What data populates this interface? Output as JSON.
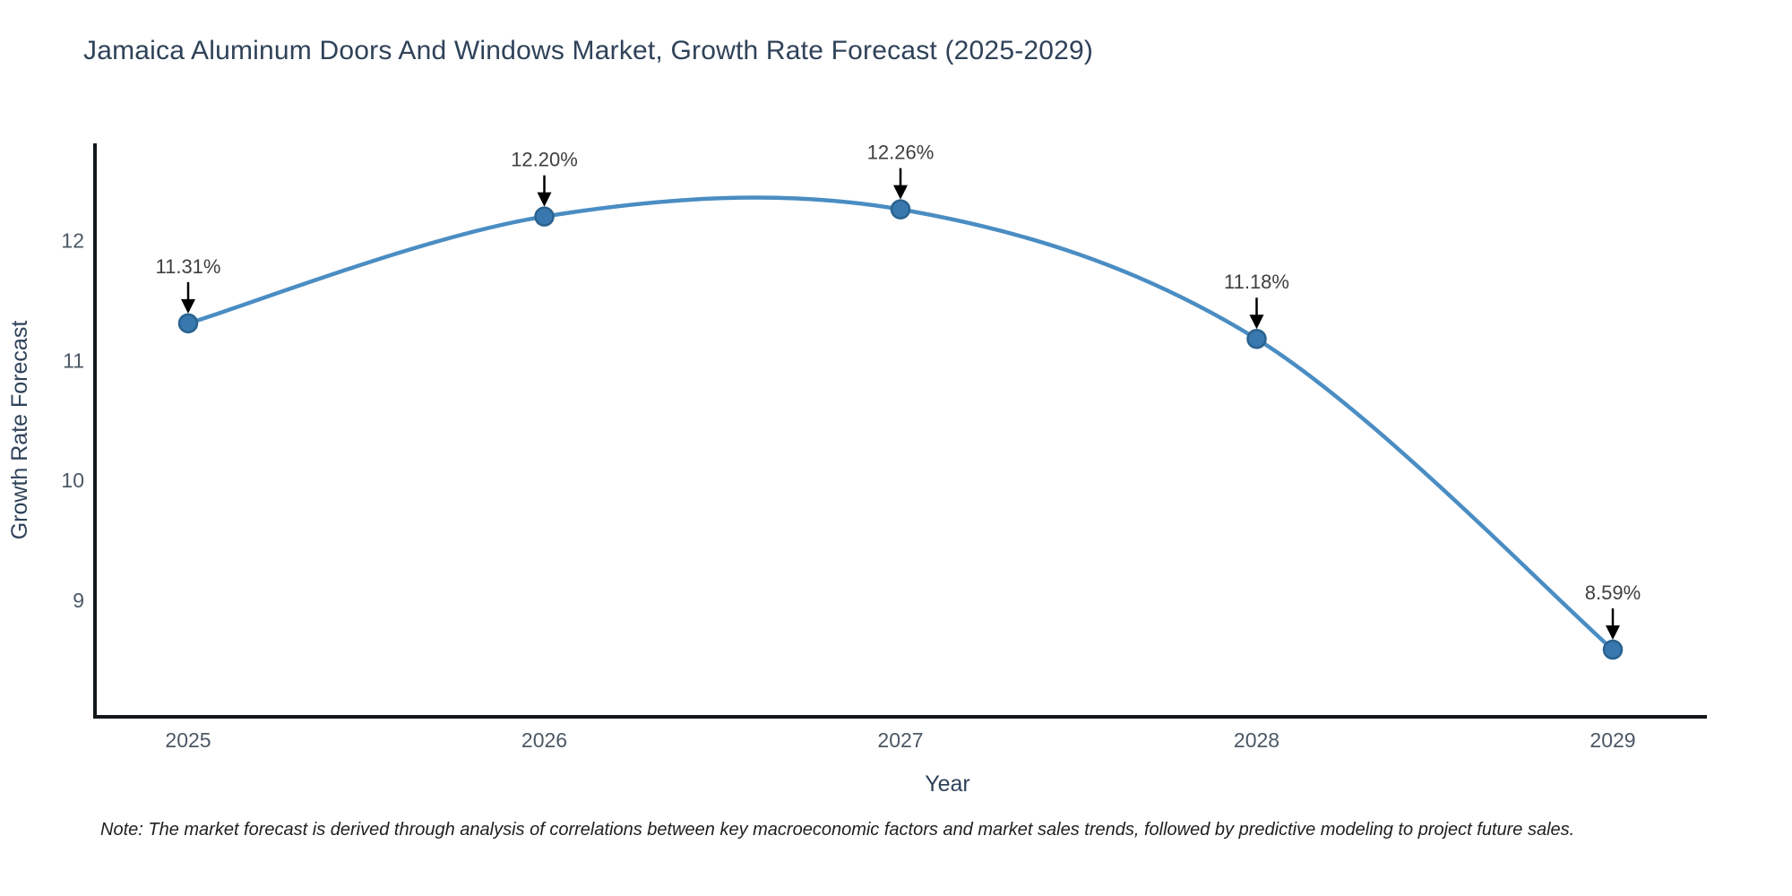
{
  "figure": {
    "title": "Jamaica Aluminum Doors And Windows Market, Growth Rate Forecast (2025-2029)",
    "note": "Note: The market forecast is derived through analysis of correlations between key macroeconomic factors and market sales trends, followed by predictive modeling to project future sales."
  },
  "chart_data": {
    "type": "line",
    "line_shape": "spline",
    "title": "Jamaica Aluminum Doors And Windows Market, Growth Rate Forecast (2025-2029)",
    "xlabel": "Year",
    "ylabel": "Growth Rate Forecast",
    "categories": [
      "2025",
      "2026",
      "2027",
      "2028",
      "2029"
    ],
    "values": [
      11.31,
      12.2,
      12.26,
      11.18,
      8.59
    ],
    "point_labels": [
      "11.31%",
      "12.20%",
      "12.26%",
      "11.18%",
      "8.59%"
    ],
    "yticks": [
      9,
      10,
      11,
      12
    ],
    "ylim": [
      8.03,
      12.81
    ],
    "grid": false,
    "legend_position": "none",
    "colors": {
      "line": "#4a8dc3",
      "marker_fill": "#3878ae",
      "marker_edge": "#2a628f",
      "axis_line": "#13171a",
      "tick_label": "#4b5866",
      "axis_title": "#2f4259",
      "annotation_text": "#3f3f3f",
      "annotation_arrow": "#000000"
    }
  }
}
